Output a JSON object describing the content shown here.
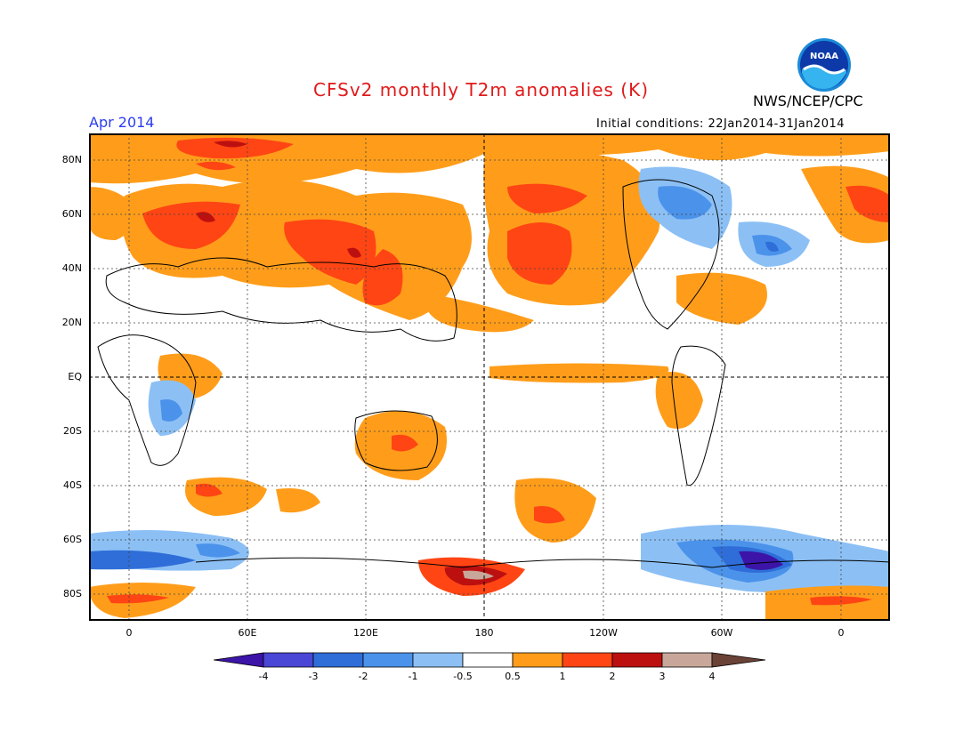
{
  "header": {
    "title": "CFSv2 monthly T2m anomalies (K)",
    "month": "Apr 2014",
    "initial_conditions": "Initial conditions: 22Jan2014-31Jan2014",
    "organization": "NWS/NCEP/CPC",
    "logo_text": "NOAA"
  },
  "map": {
    "lat_labels": [
      "80N",
      "60N",
      "40N",
      "20N",
      "EQ",
      "20S",
      "40S",
      "60S",
      "80S"
    ],
    "lon_labels": [
      "0",
      "60E",
      "120E",
      "180",
      "120W",
      "60W",
      "0"
    ]
  },
  "colorbar": {
    "labels": [
      "-4",
      "-3",
      "-2",
      "-1",
      "-0.5",
      "0.5",
      "1",
      "2",
      "3",
      "4"
    ],
    "colors": [
      "#3c14a8",
      "#4a46d6",
      "#2f6ed8",
      "#4b92ea",
      "#8cc0f5",
      "#ffffff",
      "#ff9d1a",
      "#ff4514",
      "#bc1010",
      "#c8a79a",
      "#6b4236"
    ]
  },
  "colors": {
    "title": "#e01a1a",
    "month": "#2a3cf0",
    "warm_weak": "#ff9d1a",
    "warm_mid": "#ff4514",
    "warm_strong": "#bc1010",
    "warm_extreme": "#c8a79a",
    "cold_weak": "#8cc0f5",
    "cold_mid": "#4b92ea",
    "cold_strong": "#2f6ed8",
    "cold_extreme": "#4a46d6"
  }
}
